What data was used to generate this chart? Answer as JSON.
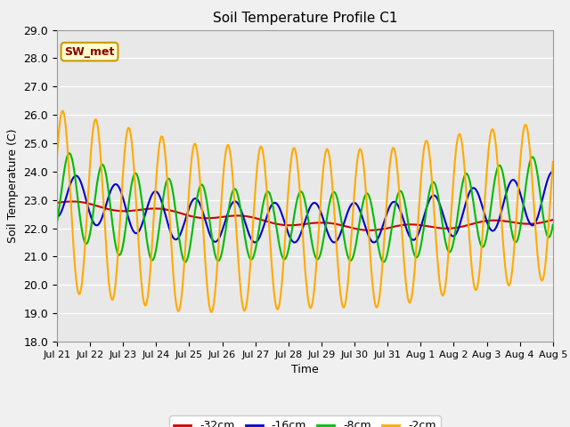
{
  "title": "Soil Temperature Profile C1",
  "ylabel": "Soil Temperature (C)",
  "xlabel": "Time",
  "annotation": "SW_met",
  "ylim": [
    18.0,
    29.0
  ],
  "yticks": [
    18.0,
    19.0,
    20.0,
    21.0,
    22.0,
    23.0,
    24.0,
    25.0,
    26.0,
    27.0,
    28.0,
    29.0
  ],
  "xtick_labels": [
    "Jul 21",
    "Jul 22",
    "Jul 23",
    "Jul 24",
    "Jul 25",
    "Jul 26",
    "Jul 27",
    "Jul 28",
    "Jul 29",
    "Jul 30",
    "Jul 31",
    "Aug 1",
    "Aug 2",
    "Aug 3",
    "Aug 4",
    "Aug 5"
  ],
  "fig_facecolor": "#f0f0f0",
  "ax_facecolor": "#e8e8e8",
  "series": {
    "-32cm": {
      "color": "#cc0000",
      "linewidth": 1.5
    },
    "-16cm": {
      "color": "#0000cc",
      "linewidth": 1.5
    },
    "-8cm": {
      "color": "#00bb00",
      "linewidth": 1.5
    },
    "-2cm": {
      "color": "#ffaa00",
      "linewidth": 1.5
    }
  },
  "legend": {
    "items": [
      "-32cm",
      "-16cm",
      "-8cm",
      "-2cm"
    ],
    "colors": [
      "#cc0000",
      "#0000cc",
      "#00bb00",
      "#ffaa00"
    ]
  }
}
